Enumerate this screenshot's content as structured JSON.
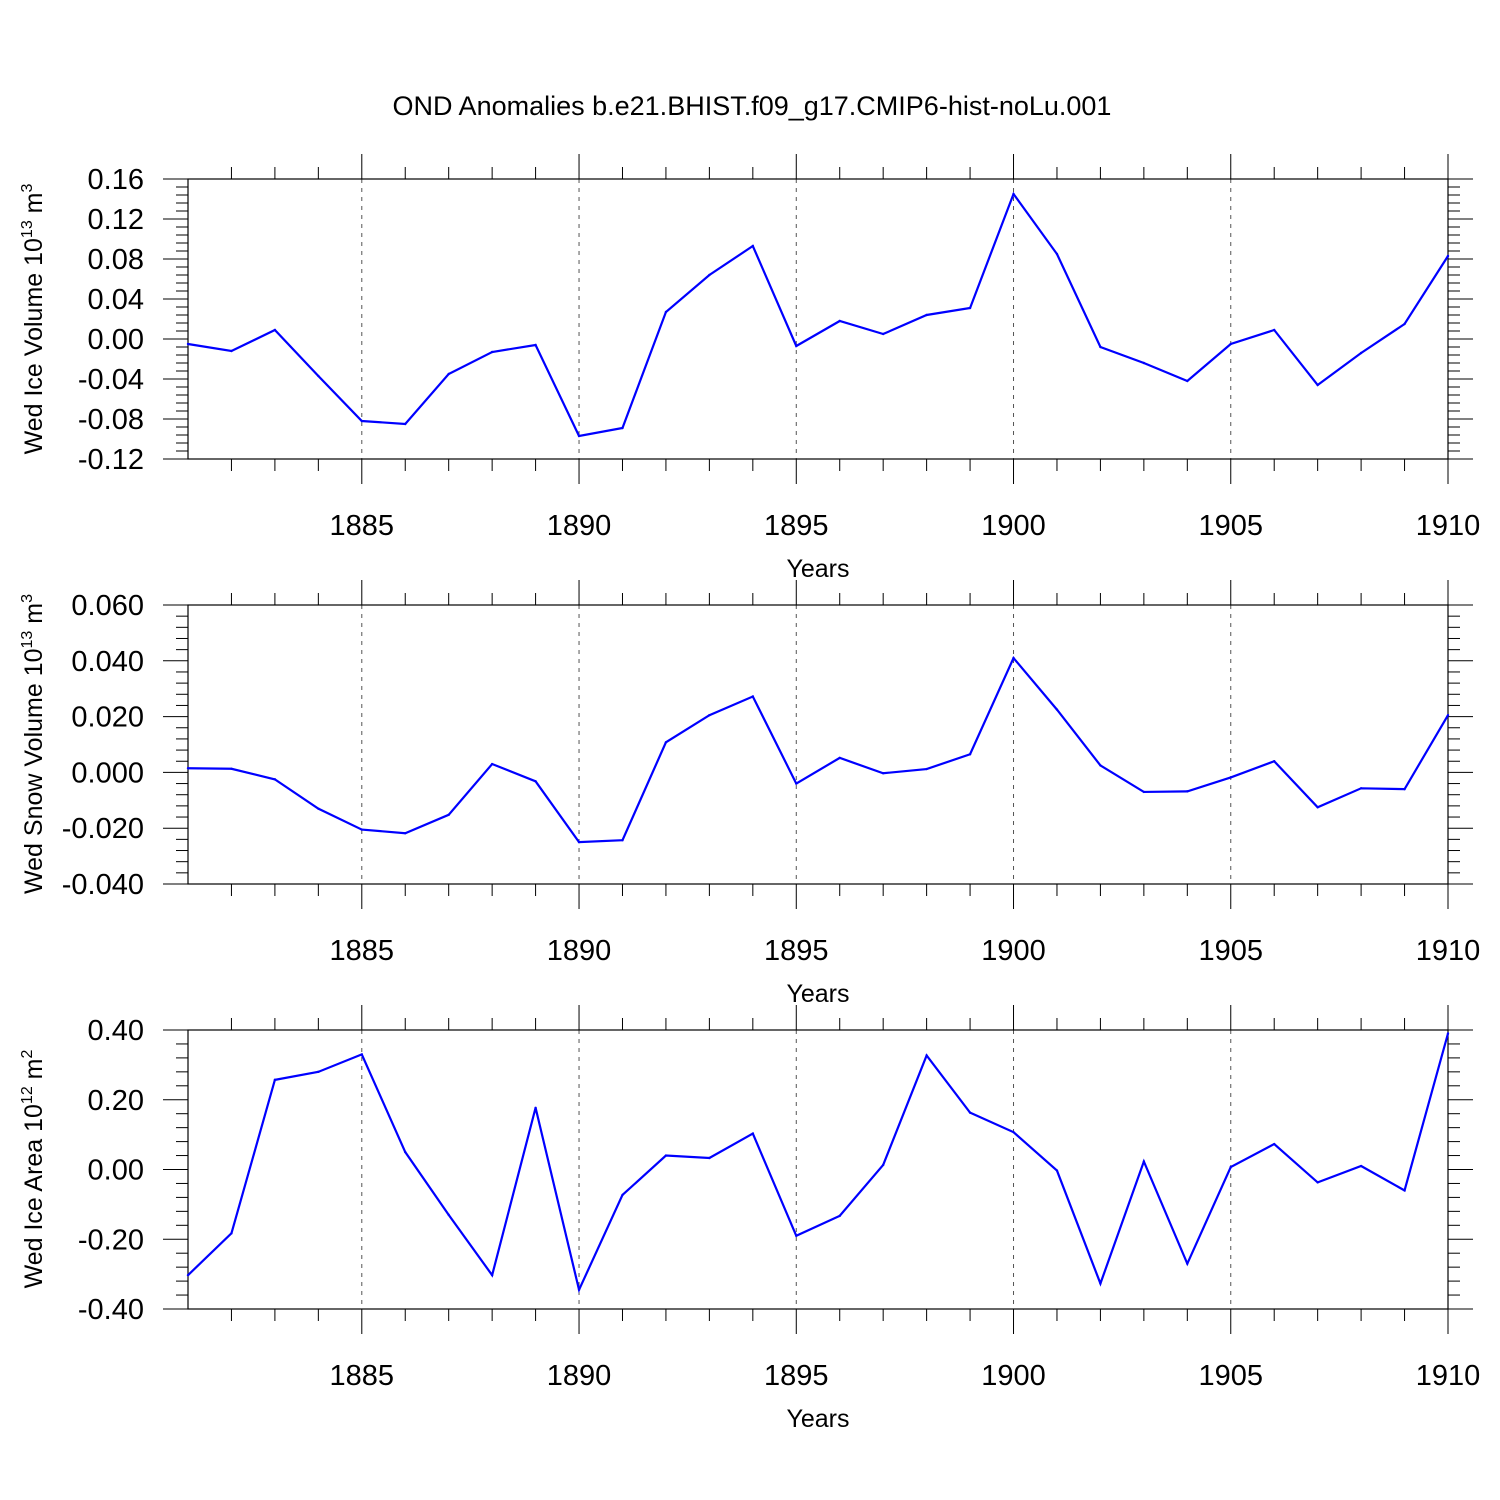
{
  "chart_data": [
    {
      "type": "line",
      "title": "OND Anomalies b.e21.BHIST.f09_g17.CMIP6-hist-noLu.001",
      "ylabel": "Wed Ice Volume 10",
      "ylabel_exp": "13",
      "ylabel_unit": " m",
      "ylabel_unit_exp": "3",
      "xlabel": "Years",
      "ylim": [
        -0.12,
        0.16
      ],
      "xlim": [
        1881,
        1910
      ],
      "yticks": [
        -0.12,
        -0.08,
        -0.04,
        0.0,
        0.04,
        0.08,
        0.12,
        0.16
      ],
      "ytick_labels": [
        "-0.12",
        "-0.08",
        "-0.04",
        "0.00",
        "0.04",
        "0.08",
        "0.12",
        "0.16"
      ],
      "xticks": [
        1885,
        1890,
        1895,
        1900,
        1905,
        1910
      ],
      "xtick_labels": [
        "1885",
        "1890",
        "1895",
        "1900",
        "1905",
        "1910"
      ],
      "x": [
        1881,
        1882,
        1883,
        1884,
        1885,
        1886,
        1887,
        1888,
        1889,
        1890,
        1891,
        1892,
        1893,
        1894,
        1895,
        1896,
        1897,
        1898,
        1899,
        1900,
        1901,
        1902,
        1903,
        1904,
        1905,
        1906,
        1907,
        1908,
        1909,
        1910
      ],
      "series": [
        {
          "name": "Wed Ice Volume",
          "color": "#0000ff",
          "values": [
            -0.005,
            -0.012,
            0.009,
            -0.037,
            -0.082,
            -0.085,
            -0.035,
            -0.013,
            -0.006,
            -0.097,
            -0.089,
            0.027,
            0.064,
            0.093,
            -0.007,
            0.018,
            0.005,
            0.024,
            0.031,
            0.145,
            0.085,
            -0.008,
            -0.024,
            -0.042,
            -0.005,
            0.009,
            -0.046,
            -0.014,
            0.015,
            0.083
          ]
        }
      ]
    },
    {
      "type": "line",
      "ylabel": "Wed Snow Volume 10",
      "ylabel_exp": "13",
      "ylabel_unit": " m",
      "ylabel_unit_exp": "3",
      "xlabel": "Years",
      "ylim": [
        -0.04,
        0.06
      ],
      "xlim": [
        1881,
        1910
      ],
      "yticks": [
        -0.04,
        -0.02,
        0.0,
        0.02,
        0.04,
        0.06
      ],
      "ytick_labels": [
        "-0.040",
        "-0.020",
        "0.000",
        "0.020",
        "0.040",
        "0.060"
      ],
      "xticks": [
        1885,
        1890,
        1895,
        1900,
        1905,
        1910
      ],
      "xtick_labels": [
        "1885",
        "1890",
        "1895",
        "1900",
        "1905",
        "1910"
      ],
      "x": [
        1881,
        1882,
        1883,
        1884,
        1885,
        1886,
        1887,
        1888,
        1889,
        1890,
        1891,
        1892,
        1893,
        1894,
        1895,
        1896,
        1897,
        1898,
        1899,
        1900,
        1901,
        1902,
        1903,
        1904,
        1905,
        1906,
        1907,
        1908,
        1909,
        1910
      ],
      "series": [
        {
          "name": "Wed Snow Volume",
          "color": "#0000ff",
          "values": [
            0.0015,
            0.0013,
            -0.0025,
            -0.013,
            -0.0205,
            -0.0218,
            -0.0152,
            0.003,
            -0.0032,
            -0.025,
            -0.0243,
            0.0108,
            0.0205,
            0.0272,
            -0.004,
            0.0052,
            -0.0003,
            0.0012,
            0.0065,
            0.041,
            0.0225,
            0.0025,
            -0.007,
            -0.0068,
            -0.0018,
            0.004,
            -0.0125,
            -0.0057,
            -0.006,
            0.0205
          ]
        }
      ]
    },
    {
      "type": "line",
      "ylabel": "Wed Ice Area 10",
      "ylabel_exp": "12",
      "ylabel_unit": " m",
      "ylabel_unit_exp": "2",
      "xlabel": "Years",
      "ylim": [
        -0.4,
        0.4
      ],
      "xlim": [
        1881,
        1910
      ],
      "yticks": [
        -0.4,
        -0.2,
        0.0,
        0.2,
        0.4
      ],
      "ytick_labels": [
        "-0.40",
        "-0.20",
        "0.00",
        "0.20",
        "0.40"
      ],
      "xticks": [
        1885,
        1890,
        1895,
        1900,
        1905,
        1910
      ],
      "xtick_labels": [
        "1885",
        "1890",
        "1895",
        "1900",
        "1905",
        "1910"
      ],
      "x": [
        1881,
        1882,
        1883,
        1884,
        1885,
        1886,
        1887,
        1888,
        1889,
        1890,
        1891,
        1892,
        1893,
        1894,
        1895,
        1896,
        1897,
        1898,
        1899,
        1900,
        1901,
        1902,
        1903,
        1904,
        1905,
        1906,
        1907,
        1908,
        1909,
        1910
      ],
      "series": [
        {
          "name": "Wed Ice Area",
          "color": "#0000ff",
          "values": [
            -0.303,
            -0.183,
            0.257,
            0.28,
            0.33,
            0.05,
            -0.13,
            -0.303,
            0.177,
            -0.345,
            -0.073,
            0.04,
            0.033,
            0.103,
            -0.19,
            -0.133,
            0.013,
            0.327,
            0.163,
            0.107,
            -0.003,
            -0.327,
            0.023,
            -0.27,
            0.007,
            0.073,
            -0.037,
            0.01,
            -0.06,
            0.39
          ]
        }
      ]
    }
  ]
}
